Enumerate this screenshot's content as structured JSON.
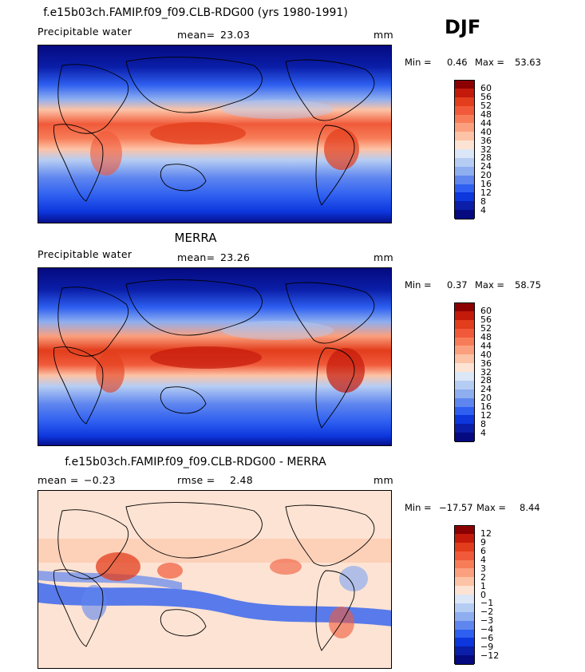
{
  "season": "DJF",
  "panels": [
    {
      "title": "f.e15b03ch.FAMIP.f09_f09.CLB-RDG00 (yrs 1980-1991)",
      "left_label": "Precipitable water",
      "mid_label": "mean=",
      "mid_value": "23.03",
      "units": "mm",
      "min_label": "Min =",
      "min_value": "0.46",
      "max_label": "Max =",
      "max_value": "53.63",
      "kind": "field"
    },
    {
      "title": "MERRA",
      "left_label": "Precipitable water",
      "mid_label": "mean=",
      "mid_value": "23.26",
      "units": "mm",
      "min_label": "Min =",
      "min_value": "0.37",
      "max_label": "Max =",
      "max_value": "58.75",
      "kind": "field"
    },
    {
      "title": "f.e15b03ch.FAMIP.f09_f09.CLB-RDG00 - MERRA",
      "left_label": "mean =",
      "left_value": "−0.23",
      "mid_label": "rmse =",
      "mid_value": "2.48",
      "units": "mm",
      "min_label": "Min =",
      "min_value": "−17.57",
      "max_label": "Max =",
      "max_value": "8.44",
      "kind": "diff"
    }
  ],
  "colorbar_field": {
    "levels": [
      "60",
      "56",
      "52",
      "48",
      "44",
      "40",
      "36",
      "32",
      "28",
      "24",
      "20",
      "16",
      "12",
      "8",
      "4"
    ],
    "colors": [
      "#8b0000",
      "#c41a0c",
      "#e23d1c",
      "#f05a3a",
      "#f77d58",
      "#fba07e",
      "#fdc3a6",
      "#fde3d3",
      "#dbe6f7",
      "#b6cdf3",
      "#8eaef0",
      "#5f86ef",
      "#2e5ff0",
      "#0d36dd",
      "#0a1ea8",
      "#050a80"
    ]
  },
  "colorbar_diff": {
    "levels": [
      "12",
      "9",
      "6",
      "4",
      "3",
      "2",
      "1",
      "0",
      "−1",
      "−2",
      "−3",
      "−4",
      "−6",
      "−9",
      "−12"
    ],
    "colors": [
      "#8b0000",
      "#c41a0c",
      "#e23d1c",
      "#f05a3a",
      "#f77d58",
      "#fba07e",
      "#fdc3a6",
      "#fde3d3",
      "#dbe6f7",
      "#b6cdf3",
      "#8eaef0",
      "#5f86ef",
      "#2e5ff0",
      "#0d36dd",
      "#0a1ea8",
      "#050a80"
    ]
  },
  "chart_data": [
    {
      "type": "heatmap",
      "title": "f.e15b03ch.FAMIP.f09_f09.CLB-RDG00 (yrs 1980-1991)",
      "variable": "Precipitable water",
      "units": "mm",
      "season": "DJF",
      "mean": 23.03,
      "min": 0.46,
      "max": 53.63,
      "colorbar_levels": [
        4,
        8,
        12,
        16,
        20,
        24,
        28,
        32,
        36,
        40,
        44,
        48,
        52,
        56,
        60
      ]
    },
    {
      "type": "heatmap",
      "title": "MERRA",
      "variable": "Precipitable water",
      "units": "mm",
      "season": "DJF",
      "mean": 23.26,
      "min": 0.37,
      "max": 58.75,
      "colorbar_levels": [
        4,
        8,
        12,
        16,
        20,
        24,
        28,
        32,
        36,
        40,
        44,
        48,
        52,
        56,
        60
      ]
    },
    {
      "type": "heatmap",
      "title": "f.e15b03ch.FAMIP.f09_f09.CLB-RDG00 - MERRA",
      "units": "mm",
      "season": "DJF",
      "mean": -0.23,
      "rmse": 2.48,
      "min": -17.57,
      "max": 8.44,
      "colorbar_levels": [
        -12,
        -9,
        -6,
        -4,
        -3,
        -2,
        -1,
        0,
        1,
        2,
        3,
        4,
        6,
        9,
        12
      ]
    }
  ]
}
